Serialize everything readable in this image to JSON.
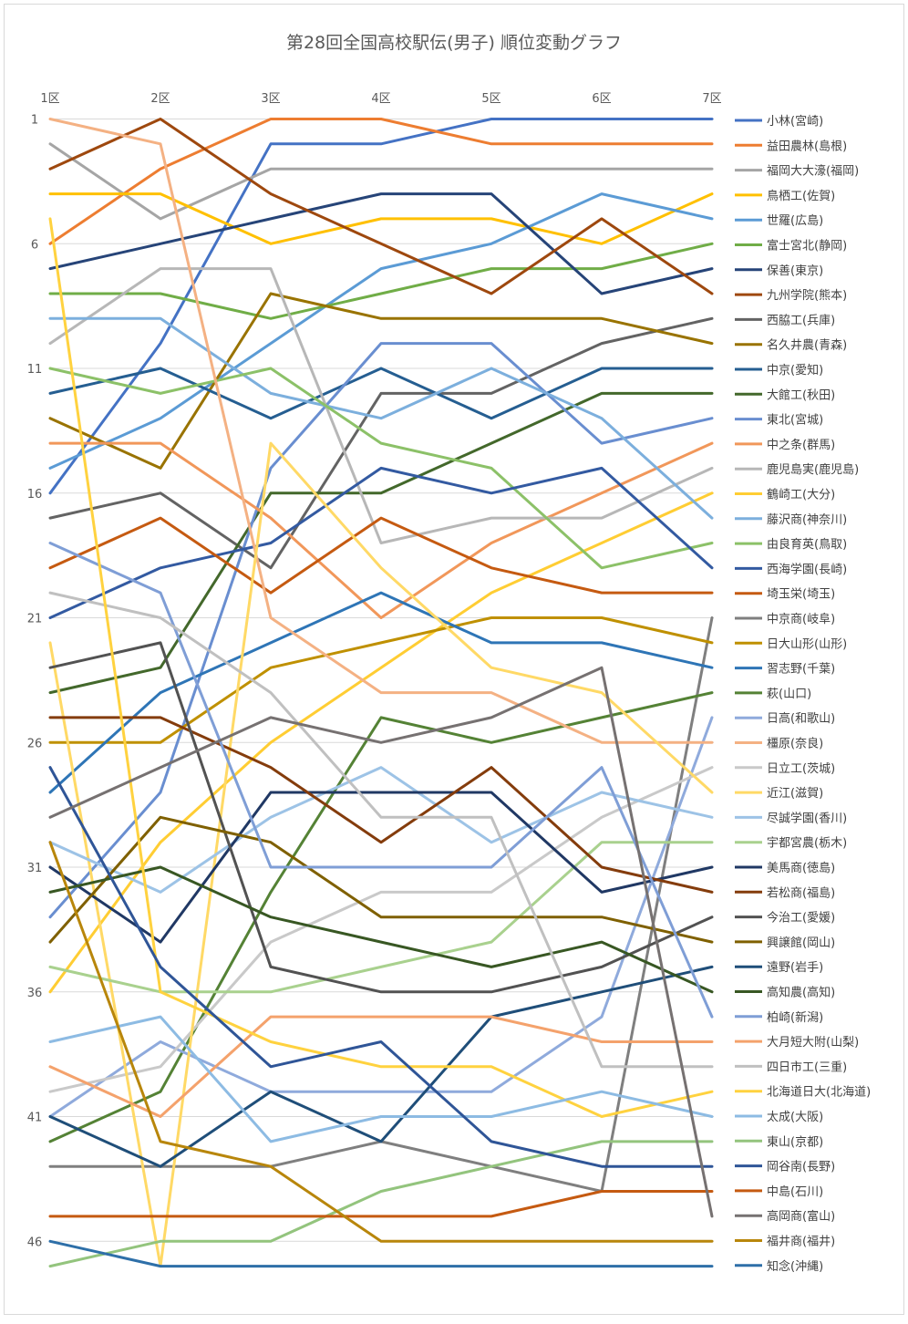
{
  "chart_data": {
    "type": "line",
    "title": "第28回全国高校駅伝(男子) 順位変動グラフ",
    "xlabel": "",
    "ylabel": "",
    "categories": [
      "1区",
      "2区",
      "3区",
      "4区",
      "5区",
      "6区",
      "7区"
    ],
    "y_ticks": [
      "1",
      "6",
      "11",
      "16",
      "21",
      "26",
      "31",
      "36",
      "41",
      "46"
    ],
    "ylim": [
      1,
      47
    ],
    "y_reversed": true,
    "grid": true,
    "legend_position": "right",
    "series": [
      {
        "name": "小林(宮崎)",
        "color": "#4472C4",
        "values": [
          16,
          10,
          2,
          2,
          1,
          1,
          1
        ]
      },
      {
        "name": "益田農林(島根)",
        "color": "#ED7D31",
        "values": [
          6,
          3,
          1,
          1,
          2,
          2,
          2
        ]
      },
      {
        "name": "福岡大大濠(福岡)",
        "color": "#A5A5A5",
        "values": [
          2,
          5,
          3,
          3,
          3,
          3,
          3
        ]
      },
      {
        "name": "鳥栖工(佐賀)",
        "color": "#FFC000",
        "values": [
          4,
          4,
          6,
          5,
          5,
          6,
          4
        ]
      },
      {
        "name": "世羅(広島)",
        "color": "#5B9BD5",
        "values": [
          15,
          13,
          10,
          7,
          6,
          4,
          5
        ]
      },
      {
        "name": "富士宮北(静岡)",
        "color": "#70AD47",
        "values": [
          8,
          8,
          9,
          8,
          7,
          7,
          6
        ]
      },
      {
        "name": "保善(東京)",
        "color": "#264478",
        "values": [
          7,
          6,
          5,
          4,
          4,
          8,
          7
        ]
      },
      {
        "name": "九州学院(熊本)",
        "color": "#9E480E",
        "values": [
          3,
          1,
          4,
          6,
          8,
          5,
          8
        ]
      },
      {
        "name": "西脇工(兵庫)",
        "color": "#636363",
        "values": [
          17,
          16,
          19,
          12,
          12,
          10,
          9
        ]
      },
      {
        "name": "名久井農(青森)",
        "color": "#997300",
        "values": [
          13,
          15,
          8,
          9,
          9,
          9,
          10
        ]
      },
      {
        "name": "中京(愛知)",
        "color": "#255E91",
        "values": [
          12,
          11,
          13,
          11,
          13,
          11,
          11
        ]
      },
      {
        "name": "大館工(秋田)",
        "color": "#43682B",
        "values": [
          24,
          23,
          16,
          16,
          14,
          12,
          12
        ]
      },
      {
        "name": "東北(宮城)",
        "color": "#698ED0",
        "values": [
          33,
          28,
          15,
          10,
          10,
          14,
          13
        ]
      },
      {
        "name": "中之条(群馬)",
        "color": "#F1975A",
        "values": [
          14,
          14,
          17,
          21,
          18,
          16,
          14
        ]
      },
      {
        "name": "鹿児島実(鹿児島)",
        "color": "#B7B7B7",
        "values": [
          10,
          7,
          7,
          18,
          17,
          17,
          15
        ]
      },
      {
        "name": "鶴崎工(大分)",
        "color": "#FFCD33",
        "values": [
          36,
          30,
          26,
          23,
          20,
          18,
          16
        ]
      },
      {
        "name": "藤沢商(神奈川)",
        "color": "#7CAFDD",
        "values": [
          9,
          9,
          12,
          13,
          11,
          13,
          17
        ]
      },
      {
        "name": "由良育英(鳥取)",
        "color": "#8CC168",
        "values": [
          11,
          12,
          11,
          14,
          15,
          19,
          18
        ]
      },
      {
        "name": "西海学園(長崎)",
        "color": "#335AA1",
        "values": [
          21,
          19,
          18,
          15,
          16,
          15,
          19
        ]
      },
      {
        "name": "埼玉栄(埼玉)",
        "color": "#C55A11",
        "values": [
          19,
          17,
          20,
          17,
          19,
          20,
          20
        ]
      },
      {
        "name": "中京商(岐阜)",
        "color": "#7F7F7F",
        "values": [
          43,
          43,
          43,
          42,
          43,
          44,
          21
        ]
      },
      {
        "name": "日大山形(山形)",
        "color": "#BF9000",
        "values": [
          26,
          26,
          23,
          22,
          21,
          21,
          22
        ]
      },
      {
        "name": "習志野(千葉)",
        "color": "#2E75B6",
        "values": [
          28,
          24,
          22,
          20,
          22,
          22,
          23
        ]
      },
      {
        "name": "萩(山口)",
        "color": "#548235",
        "values": [
          42,
          40,
          32,
          25,
          26,
          25,
          24
        ]
      },
      {
        "name": "日高(和歌山)",
        "color": "#8FAADC",
        "values": [
          41,
          38,
          40,
          40,
          40,
          37,
          25
        ]
      },
      {
        "name": "橿原(奈良)",
        "color": "#F4B183",
        "values": [
          1,
          2,
          21,
          24,
          24,
          26,
          26
        ]
      },
      {
        "name": "日立工(茨城)",
        "color": "#C9C9C9",
        "values": [
          40,
          39,
          34,
          32,
          32,
          29,
          27
        ]
      },
      {
        "name": "近江(滋賀)",
        "color": "#FFD966",
        "values": [
          22,
          47,
          14,
          19,
          23,
          24,
          28
        ]
      },
      {
        "name": "尽誠学園(香川)",
        "color": "#9DC3E6",
        "values": [
          30,
          32,
          29,
          27,
          30,
          28,
          29
        ]
      },
      {
        "name": "宇都宮農(栃木)",
        "color": "#A9D18E",
        "values": [
          35,
          36,
          36,
          35,
          34,
          30,
          30
        ]
      },
      {
        "name": "美馬商(徳島)",
        "color": "#203864",
        "values": [
          31,
          34,
          28,
          28,
          28,
          32,
          31
        ]
      },
      {
        "name": "若松商(福島)",
        "color": "#843C0C",
        "values": [
          25,
          25,
          27,
          30,
          27,
          31,
          32
        ]
      },
      {
        "name": "今治工(愛媛)",
        "color": "#525252",
        "values": [
          23,
          22,
          35,
          36,
          36,
          35,
          33
        ]
      },
      {
        "name": "興譲館(岡山)",
        "color": "#7F6000",
        "values": [
          34,
          29,
          30,
          33,
          33,
          33,
          34
        ]
      },
      {
        "name": "遠野(岩手)",
        "color": "#1F4E79",
        "values": [
          41,
          43,
          40,
          42,
          37,
          36,
          35
        ]
      },
      {
        "name": "高知農(高知)",
        "color": "#385723",
        "values": [
          32,
          31,
          33,
          34,
          35,
          34,
          36
        ]
      },
      {
        "name": "柏崎(新潟)",
        "color": "#7F9ED6",
        "values": [
          18,
          20,
          31,
          31,
          31,
          27,
          37
        ]
      },
      {
        "name": "大月短大附(山梨)",
        "color": "#F4A26C",
        "values": [
          39,
          41,
          37,
          37,
          37,
          38,
          38
        ]
      },
      {
        "name": "四日市工(三重)",
        "color": "#C0C0C0",
        "values": [
          20,
          21,
          24,
          29,
          29,
          39,
          39
        ]
      },
      {
        "name": "北海道日大(北海道)",
        "color": "#FFD23F",
        "values": [
          5,
          36,
          38,
          39,
          39,
          41,
          40
        ]
      },
      {
        "name": "太成(大阪)",
        "color": "#8DBBE3",
        "values": [
          38,
          37,
          42,
          41,
          41,
          40,
          41
        ]
      },
      {
        "name": "東山(京都)",
        "color": "#93C47D",
        "values": [
          47,
          46,
          46,
          44,
          43,
          42,
          42
        ]
      },
      {
        "name": "岡谷南(長野)",
        "color": "#2F5597",
        "values": [
          27,
          35,
          39,
          38,
          42,
          43,
          43
        ]
      },
      {
        "name": "中島(石川)",
        "color": "#C55A11",
        "values": [
          45,
          45,
          45,
          45,
          45,
          44,
          44
        ]
      },
      {
        "name": "高岡商(富山)",
        "color": "#767171",
        "values": [
          29,
          27,
          25,
          26,
          25,
          23,
          45
        ]
      },
      {
        "name": "福井商(福井)",
        "color": "#B8860B",
        "values": [
          30,
          42,
          43,
          46,
          46,
          46,
          46
        ]
      },
      {
        "name": "知念(沖縄)",
        "color": "#2E6FA8",
        "values": [
          46,
          47,
          47,
          47,
          47,
          47,
          47
        ]
      }
    ]
  }
}
